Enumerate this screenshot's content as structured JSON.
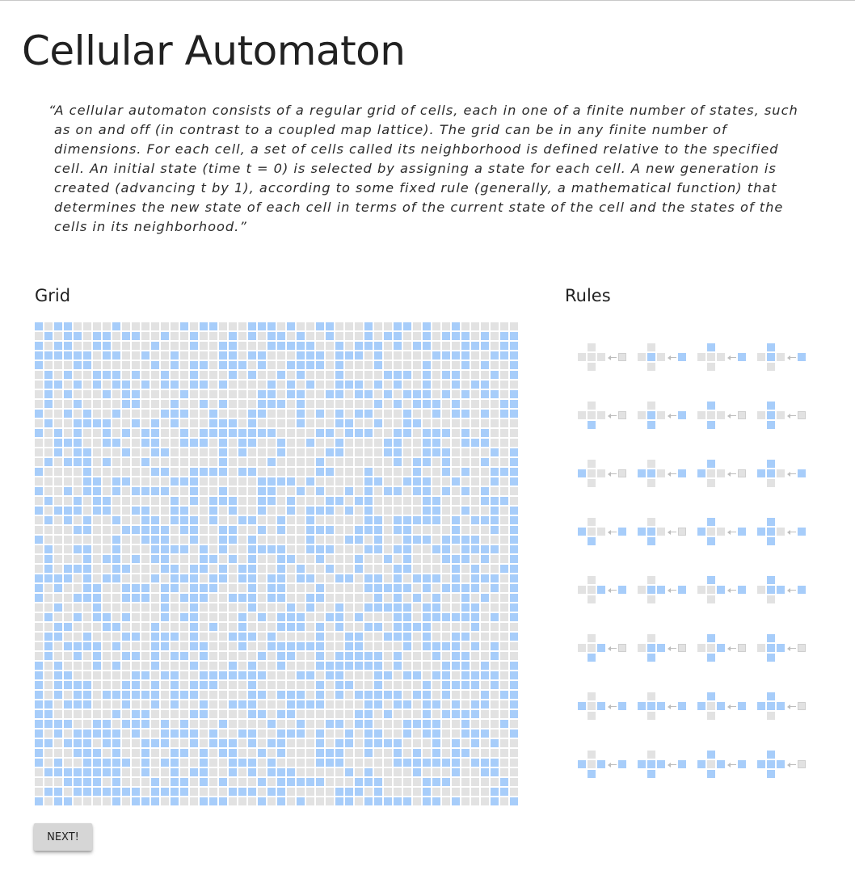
{
  "page": {
    "title": "Cellular Automaton",
    "quote": "“A cellular automaton consists of a regular grid of cells, each in one of a finite number of states, such as on and off (in contrast to a coupled map lattice). The grid can be in any finite number of dimensions. For each cell, a set of cells called its neighborhood is defined relative to the specified cell. An initial state (time t = 0) is selected by assigning a state for each cell. A new generation is created (advancing t by 1), according to some fixed rule (generally, a mathematical function) that determines the new state of each cell in terms of the current state of the cell and the states of the cells in its neighborhood.”"
  },
  "grid": {
    "heading": "Grid",
    "columns": 50,
    "rows": 50,
    "state": [
      "10110000100000010110001110100110001001101001000000",
      "01011011011001001000101011010010001011001011101011",
      "10110011000010001001100011111001011101011000111011",
      "11111101100100100001101100011101110100000111100111",
      "10001100000010101101110100111101000100001000101001",
      "01010011101001001000101001010001000011101011000101",
      "01101010110101101101000010101001110101001001011000",
      "01010001011000010000000110110011011010111010101101",
      "01001000011000100101000111010000000101011101000011",
      "10010100100001110010001100010101011000100101101011",
      "01001111001010100011101000010001100100110000000000",
      "10101001010110010111111110000110111001101110101000",
      "00111001100110011101011001001001000011001100111000",
      "00101100010011000001010001000011000011001110000101",
      "01011101000100000001000010000100000001011010001001",
      "10000100000011001111011000000110001000010010100111",
      "00000110110000111000000111101000001100111001000101",
      "10010110101111001001000110010100101011011010101000",
      "01001011000000101011100110100011011000001100001110",
      "10111011001100110010100100101110101000001100100101",
      "01010100100110111010011001001000001101111101011101",
      "00001100011111011001100101001110011101100001000101",
      "10000000100111001001101000001000110100111011110001",
      "01001100100011110101001111001110001101100110111101",
      "01000101101011000110101001100100010010100011101001",
      "01011100110001101101011001010010010001100001010011",
      "11110101100010111011011011011001101101011101011101",
      "10100110011101101110001011000100001111101011110101",
      "10001110011101011100111011001100000101010100101001",
      "00100010000001001000001000101001001111101100110001",
      "01001011010001011000010101110011010001101111110101",
      "00110001100010001010010001110101001101111000010000",
      "01100100011011101000111010000100110011101001100001",
      "01011110100011001100010011111100110000101111010100",
      "01001010011010110100000101100101111101000101100100",
      "10100010100010001000101001000111111101000011101001",
      "10110000001101100111111100011011000110110110111101",
      "10111100011010101110001000000101100100001011110101",
      "10101101111110111000001101110101011111011010001011",
      "11011100010010100100111000111100001101101101011001",
      "11000000101100001100001101100000011010001011110001",
      "11110011011101010001000010010011011000111100100010",
      "10101111101001111010011001110100101100101100111001",
      "11011101100111001011101011000101101111000101010100",
      "10001110100100110101100101000111001001010101100000",
      "10100111110101100100111010000111000001111111011100",
      "01111111100100101100101011100000101000010001001100",
      "00011110100010110101000101111100011100001110000010",
      "01101111111011110000111011000001110100001000000110",
      "10110000101110100111000101010001101111101101000101"
    ]
  },
  "rules": {
    "heading": "Rules",
    "items": [
      {
        "top": 0,
        "left": 0,
        "center": 0,
        "right": 0,
        "bottom": 0,
        "result": 0
      },
      {
        "top": 0,
        "left": 0,
        "center": 1,
        "right": 0,
        "bottom": 0,
        "result": 1
      },
      {
        "top": 1,
        "left": 0,
        "center": 0,
        "right": 0,
        "bottom": 0,
        "result": 1
      },
      {
        "top": 1,
        "left": 0,
        "center": 1,
        "right": 0,
        "bottom": 0,
        "result": 1
      },
      {
        "top": 0,
        "left": 0,
        "center": 0,
        "right": 0,
        "bottom": 1,
        "result": 0
      },
      {
        "top": 0,
        "left": 0,
        "center": 1,
        "right": 0,
        "bottom": 1,
        "result": 1
      },
      {
        "top": 1,
        "left": 0,
        "center": 0,
        "right": 0,
        "bottom": 1,
        "result": 0
      },
      {
        "top": 1,
        "left": 0,
        "center": 1,
        "right": 0,
        "bottom": 1,
        "result": 0
      },
      {
        "top": 0,
        "left": 1,
        "center": 0,
        "right": 0,
        "bottom": 0,
        "result": 0
      },
      {
        "top": 0,
        "left": 1,
        "center": 1,
        "right": 0,
        "bottom": 0,
        "result": 1
      },
      {
        "top": 1,
        "left": 1,
        "center": 0,
        "right": 0,
        "bottom": 0,
        "result": 0
      },
      {
        "top": 1,
        "left": 1,
        "center": 1,
        "right": 0,
        "bottom": 0,
        "result": 1
      },
      {
        "top": 0,
        "left": 1,
        "center": 0,
        "right": 0,
        "bottom": 1,
        "result": 1
      },
      {
        "top": 0,
        "left": 1,
        "center": 1,
        "right": 0,
        "bottom": 1,
        "result": 0
      },
      {
        "top": 1,
        "left": 1,
        "center": 0,
        "right": 0,
        "bottom": 1,
        "result": 1
      },
      {
        "top": 1,
        "left": 1,
        "center": 1,
        "right": 0,
        "bottom": 1,
        "result": 1
      },
      {
        "top": 0,
        "left": 0,
        "center": 0,
        "right": 1,
        "bottom": 0,
        "result": 1
      },
      {
        "top": 0,
        "left": 0,
        "center": 1,
        "right": 1,
        "bottom": 0,
        "result": 1
      },
      {
        "top": 1,
        "left": 0,
        "center": 0,
        "right": 1,
        "bottom": 0,
        "result": 1
      },
      {
        "top": 1,
        "left": 0,
        "center": 1,
        "right": 1,
        "bottom": 0,
        "result": 1
      },
      {
        "top": 0,
        "left": 0,
        "center": 0,
        "right": 1,
        "bottom": 1,
        "result": 0
      },
      {
        "top": 0,
        "left": 0,
        "center": 1,
        "right": 1,
        "bottom": 1,
        "result": 0
      },
      {
        "top": 1,
        "left": 0,
        "center": 0,
        "right": 1,
        "bottom": 1,
        "result": 0
      },
      {
        "top": 1,
        "left": 0,
        "center": 1,
        "right": 1,
        "bottom": 1,
        "result": 0
      },
      {
        "top": 0,
        "left": 1,
        "center": 0,
        "right": 1,
        "bottom": 0,
        "result": 1
      },
      {
        "top": 0,
        "left": 1,
        "center": 1,
        "right": 1,
        "bottom": 0,
        "result": 1
      },
      {
        "top": 1,
        "left": 1,
        "center": 0,
        "right": 1,
        "bottom": 0,
        "result": 1
      },
      {
        "top": 1,
        "left": 1,
        "center": 1,
        "right": 1,
        "bottom": 0,
        "result": 0
      },
      {
        "top": 0,
        "left": 1,
        "center": 0,
        "right": 1,
        "bottom": 1,
        "result": 1
      },
      {
        "top": 0,
        "left": 1,
        "center": 1,
        "right": 1,
        "bottom": 1,
        "result": 1
      },
      {
        "top": 1,
        "left": 1,
        "center": 0,
        "right": 1,
        "bottom": 1,
        "result": 1
      },
      {
        "top": 1,
        "left": 1,
        "center": 1,
        "right": 1,
        "bottom": 1,
        "result": 0
      }
    ]
  },
  "controls": {
    "next_label": "NEXT!"
  },
  "colors": {
    "on": "#a7cdfa",
    "off": "#e2e2e2",
    "text": "#212121",
    "button": "#d6d6d6"
  }
}
